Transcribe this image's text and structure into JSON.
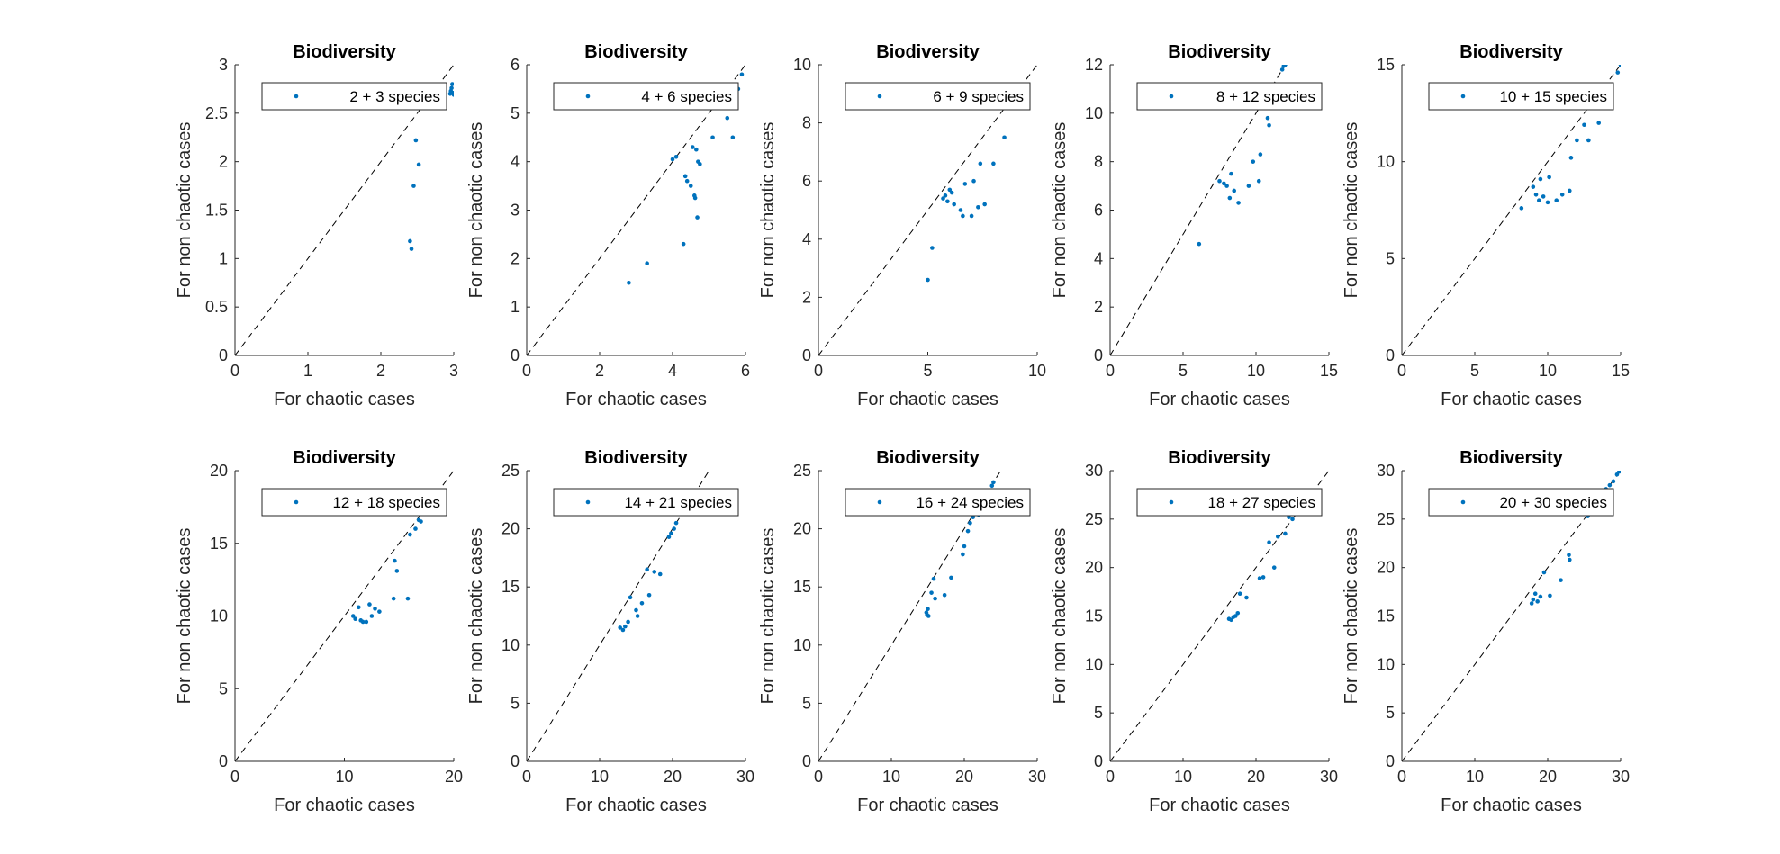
{
  "chart_data": [
    {
      "type": "scatter",
      "title": "Biodiversity",
      "xlabel": "For chaotic cases",
      "ylabel": "For non chaotic cases",
      "xlim": [
        0,
        3
      ],
      "ylim": [
        0,
        3
      ],
      "xticks": [
        0,
        1,
        2,
        3
      ],
      "yticks": [
        0,
        0.5,
        1,
        1.5,
        2,
        2.5,
        3
      ],
      "reference_line": "y = x (dashed)",
      "legend_position": "top-right",
      "color": "#0072BD",
      "series": [
        {
          "name": "2 + 3 species",
          "points": [
            [
              2.4,
              1.18
            ],
            [
              2.42,
              1.1
            ],
            [
              2.45,
              1.75
            ],
            [
              2.48,
              2.22
            ],
            [
              2.52,
              1.97
            ],
            [
              2.95,
              2.7
            ],
            [
              2.96,
              2.73
            ],
            [
              2.97,
              2.76
            ],
            [
              2.98,
              2.8
            ],
            [
              2.99,
              2.71
            ],
            [
              3.0,
              2.69
            ]
          ]
        }
      ]
    },
    {
      "type": "scatter",
      "title": "Biodiversity",
      "xlabel": "For chaotic cases",
      "ylabel": "For non chaotic cases",
      "xlim": [
        0,
        6
      ],
      "ylim": [
        0,
        6
      ],
      "xticks": [
        0,
        2,
        4,
        6
      ],
      "yticks": [
        0,
        1,
        2,
        3,
        4,
        5,
        6
      ],
      "reference_line": "y = x (dashed)",
      "legend_position": "top-right",
      "color": "#0072BD",
      "series": [
        {
          "name": "4 + 6 species",
          "points": [
            [
              2.8,
              1.5
            ],
            [
              3.3,
              1.9
            ],
            [
              4.0,
              4.05
            ],
            [
              4.1,
              4.1
            ],
            [
              4.3,
              2.3
            ],
            [
              4.35,
              3.7
            ],
            [
              4.4,
              3.6
            ],
            [
              4.5,
              3.5
            ],
            [
              4.55,
              4.3
            ],
            [
              4.6,
              3.3
            ],
            [
              4.62,
              3.25
            ],
            [
              4.65,
              4.25
            ],
            [
              4.68,
              2.85
            ],
            [
              4.7,
              4.0
            ],
            [
              4.75,
              3.95
            ],
            [
              5.1,
              4.5
            ],
            [
              5.5,
              4.9
            ],
            [
              5.65,
              4.5
            ],
            [
              5.7,
              5.3
            ],
            [
              5.8,
              5.5
            ],
            [
              5.9,
              5.8
            ]
          ]
        }
      ]
    },
    {
      "type": "scatter",
      "title": "Biodiversity",
      "xlabel": "For chaotic cases",
      "ylabel": "For non chaotic cases",
      "xlim": [
        0,
        10
      ],
      "ylim": [
        0,
        10
      ],
      "xticks": [
        0,
        5,
        10
      ],
      "yticks": [
        0,
        2,
        4,
        6,
        8,
        10
      ],
      "reference_line": "y = x (dashed)",
      "legend_position": "top-right",
      "color": "#0072BD",
      "series": [
        {
          "name": "6 + 9 species",
          "points": [
            [
              5.0,
              2.6
            ],
            [
              5.2,
              3.7
            ],
            [
              5.7,
              5.4
            ],
            [
              5.8,
              5.5
            ],
            [
              5.9,
              5.3
            ],
            [
              6.0,
              5.7
            ],
            [
              6.1,
              5.6
            ],
            [
              6.2,
              5.2
            ],
            [
              6.5,
              5.0
            ],
            [
              6.6,
              4.8
            ],
            [
              6.7,
              5.9
            ],
            [
              7.0,
              4.8
            ],
            [
              7.1,
              6.0
            ],
            [
              7.3,
              5.1
            ],
            [
              7.4,
              6.6
            ],
            [
              7.6,
              5.2
            ],
            [
              8.0,
              6.6
            ],
            [
              8.5,
              7.5
            ]
          ]
        }
      ]
    },
    {
      "type": "scatter",
      "title": "Biodiversity",
      "xlabel": "For chaotic cases",
      "ylabel": "For non chaotic cases",
      "xlim": [
        0,
        15
      ],
      "ylim": [
        0,
        12
      ],
      "xticks": [
        0,
        5,
        10,
        15
      ],
      "yticks": [
        0,
        2,
        4,
        6,
        8,
        10,
        12
      ],
      "reference_line": "y = x (dashed)",
      "legend_position": "top-right",
      "color": "#0072BD",
      "series": [
        {
          "name": "8 + 12 species",
          "points": [
            [
              6.1,
              4.6
            ],
            [
              7.5,
              7.2
            ],
            [
              7.8,
              7.1
            ],
            [
              8.0,
              7.0
            ],
            [
              8.2,
              6.5
            ],
            [
              8.3,
              7.5
            ],
            [
              8.5,
              6.8
            ],
            [
              8.8,
              6.3
            ],
            [
              9.5,
              7.0
            ],
            [
              9.8,
              8.0
            ],
            [
              10.2,
              7.2
            ],
            [
              10.3,
              8.3
            ],
            [
              10.8,
              9.8
            ],
            [
              10.9,
              9.5
            ],
            [
              11.8,
              11.8
            ],
            [
              11.9,
              11.95
            ],
            [
              12.0,
              12.0
            ]
          ]
        }
      ]
    },
    {
      "type": "scatter",
      "title": "Biodiversity",
      "xlabel": "For chaotic cases",
      "ylabel": "For non chaotic cases",
      "xlim": [
        0,
        15
      ],
      "ylim": [
        0,
        15
      ],
      "xticks": [
        0,
        5,
        10,
        15
      ],
      "yticks": [
        0,
        5,
        10,
        15
      ],
      "reference_line": "y = x (dashed)",
      "legend_position": "top-right",
      "color": "#0072BD",
      "series": [
        {
          "name": "10 + 15 species",
          "points": [
            [
              8.2,
              7.6
            ],
            [
              9.0,
              8.7
            ],
            [
              9.2,
              8.3
            ],
            [
              9.4,
              8.0
            ],
            [
              9.5,
              9.1
            ],
            [
              9.7,
              8.2
            ],
            [
              10.0,
              7.9
            ],
            [
              10.1,
              9.2
            ],
            [
              10.6,
              8.0
            ],
            [
              11.0,
              8.3
            ],
            [
              11.5,
              8.5
            ],
            [
              11.6,
              10.2
            ],
            [
              12.0,
              11.1
            ],
            [
              12.5,
              11.9
            ],
            [
              12.8,
              11.1
            ],
            [
              13.5,
              12.0
            ],
            [
              14.8,
              14.6
            ],
            [
              15.0,
              15.0
            ]
          ]
        }
      ]
    },
    {
      "type": "scatter",
      "title": "Biodiversity",
      "xlabel": "For chaotic cases",
      "ylabel": "For non chaotic cases",
      "xlim": [
        0,
        20
      ],
      "ylim": [
        0,
        20
      ],
      "xticks": [
        0,
        10,
        20
      ],
      "yticks": [
        0,
        5,
        10,
        15,
        20
      ],
      "reference_line": "y = x (dashed)",
      "legend_position": "top-right",
      "color": "#0072BD",
      "series": [
        {
          "name": "12 + 18 species",
          "points": [
            [
              10.8,
              10.0
            ],
            [
              11.0,
              9.8
            ],
            [
              11.3,
              10.6
            ],
            [
              11.5,
              9.7
            ],
            [
              11.7,
              9.6
            ],
            [
              12.0,
              9.6
            ],
            [
              12.3,
              10.8
            ],
            [
              12.5,
              10.0
            ],
            [
              12.8,
              10.5
            ],
            [
              13.2,
              10.3
            ],
            [
              14.5,
              11.2
            ],
            [
              14.6,
              13.8
            ],
            [
              14.8,
              13.1
            ],
            [
              15.8,
              11.2
            ],
            [
              16.0,
              15.6
            ],
            [
              16.5,
              16.0
            ],
            [
              16.8,
              16.6
            ],
            [
              17.0,
              16.5
            ]
          ]
        }
      ]
    },
    {
      "type": "scatter",
      "title": "Biodiversity",
      "xlabel": "For chaotic cases",
      "ylabel": "For non chaotic cases",
      "xlim": [
        0,
        30
      ],
      "ylim": [
        0,
        25
      ],
      "xticks": [
        0,
        10,
        20,
        30
      ],
      "yticks": [
        0,
        5,
        10,
        15,
        20,
        25
      ],
      "reference_line": "y = x (dashed)",
      "legend_position": "top-right",
      "color": "#0072BD",
      "series": [
        {
          "name": "14 + 21 species",
          "points": [
            [
              12.8,
              11.5
            ],
            [
              13.2,
              11.3
            ],
            [
              13.5,
              11.6
            ],
            [
              13.9,
              12.0
            ],
            [
              14.2,
              14.1
            ],
            [
              15.0,
              13.0
            ],
            [
              15.2,
              12.5
            ],
            [
              15.8,
              13.6
            ],
            [
              16.5,
              16.5
            ],
            [
              16.8,
              14.3
            ],
            [
              17.5,
              16.3
            ],
            [
              18.3,
              16.1
            ],
            [
              19.5,
              19.3
            ],
            [
              19.8,
              19.6
            ],
            [
              20.2,
              20.0
            ],
            [
              20.5,
              20.5
            ]
          ]
        }
      ]
    },
    {
      "type": "scatter",
      "title": "Biodiversity",
      "xlabel": "For chaotic cases",
      "ylabel": "For non chaotic cases",
      "xlim": [
        0,
        30
      ],
      "ylim": [
        0,
        25
      ],
      "xticks": [
        0,
        10,
        20,
        30
      ],
      "yticks": [
        0,
        5,
        10,
        15,
        20,
        25
      ],
      "reference_line": "y = x (dashed)",
      "legend_position": "top-right",
      "color": "#0072BD",
      "series": [
        {
          "name": "16 + 24 species",
          "points": [
            [
              14.8,
              12.8
            ],
            [
              14.9,
              12.6
            ],
            [
              15.0,
              13.1
            ],
            [
              15.1,
              12.5
            ],
            [
              15.5,
              14.5
            ],
            [
              15.8,
              15.7
            ],
            [
              16.0,
              14.0
            ],
            [
              17.3,
              14.3
            ],
            [
              18.2,
              15.8
            ],
            [
              19.8,
              17.8
            ],
            [
              20.0,
              18.5
            ],
            [
              20.5,
              19.8
            ],
            [
              20.8,
              20.5
            ],
            [
              21.2,
              21.0
            ],
            [
              22.0,
              21.2
            ],
            [
              23.5,
              23.0
            ],
            [
              23.8,
              23.7
            ],
            [
              24.0,
              24.0
            ]
          ]
        }
      ]
    },
    {
      "type": "scatter",
      "title": "Biodiversity",
      "xlabel": "For chaotic cases",
      "ylabel": "For non chaotic cases",
      "xlim": [
        0,
        30
      ],
      "ylim": [
        0,
        30
      ],
      "xticks": [
        0,
        10,
        20,
        30
      ],
      "yticks": [
        0,
        5,
        10,
        15,
        20,
        25,
        30
      ],
      "reference_line": "y = x (dashed)",
      "legend_position": "top-right",
      "color": "#0072BD",
      "series": [
        {
          "name": "18 + 27 species",
          "points": [
            [
              16.3,
              14.7
            ],
            [
              16.6,
              14.6
            ],
            [
              16.9,
              14.9
            ],
            [
              17.2,
              15.0
            ],
            [
              17.5,
              15.3
            ],
            [
              17.8,
              17.3
            ],
            [
              18.7,
              16.9
            ],
            [
              20.5,
              18.9
            ],
            [
              21.0,
              19.0
            ],
            [
              21.8,
              22.6
            ],
            [
              22.5,
              20.0
            ],
            [
              23.0,
              23.2
            ],
            [
              24.0,
              23.5
            ],
            [
              24.5,
              25.2
            ],
            [
              25.0,
              25.0
            ]
          ]
        }
      ]
    },
    {
      "type": "scatter",
      "title": "Biodiversity",
      "xlabel": "For chaotic cases",
      "ylabel": "For non chaotic cases",
      "xlim": [
        0,
        30
      ],
      "ylim": [
        0,
        30
      ],
      "xticks": [
        0,
        10,
        20,
        30
      ],
      "yticks": [
        0,
        5,
        10,
        15,
        20,
        25,
        30
      ],
      "reference_line": "y = x (dashed)",
      "legend_position": "top-right",
      "color": "#0072BD",
      "series": [
        {
          "name": "20 + 30 species",
          "points": [
            [
              17.8,
              16.3
            ],
            [
              18.0,
              16.7
            ],
            [
              18.3,
              17.3
            ],
            [
              18.6,
              16.5
            ],
            [
              19.0,
              17.0
            ],
            [
              19.5,
              19.5
            ],
            [
              20.3,
              17.1
            ],
            [
              21.8,
              18.7
            ],
            [
              22.9,
              21.3
            ],
            [
              23.0,
              20.8
            ],
            [
              25.5,
              25.3
            ],
            [
              28.0,
              28.1
            ],
            [
              28.5,
              28.5
            ],
            [
              29.0,
              28.9
            ],
            [
              29.5,
              29.6
            ],
            [
              29.8,
              29.9
            ]
          ]
        }
      ]
    }
  ]
}
